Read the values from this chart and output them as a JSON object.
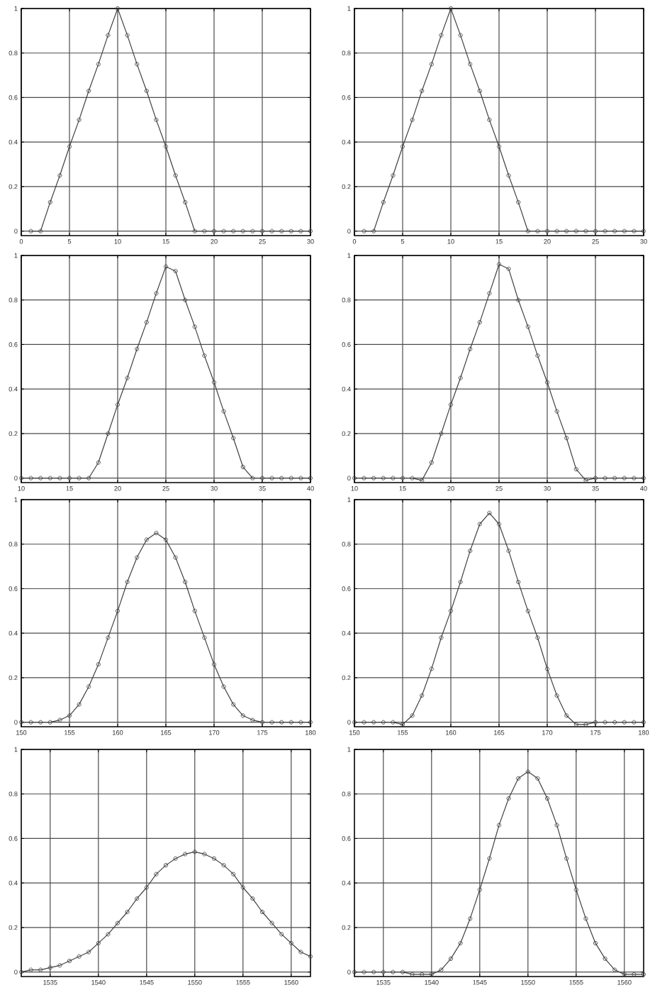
{
  "chart_data": [
    {
      "type": "line",
      "x": [
        1,
        2,
        3,
        4,
        5,
        6,
        7,
        8,
        9,
        10,
        11,
        12,
        13,
        14,
        15,
        16,
        17,
        18,
        19,
        20,
        21,
        22,
        23,
        24,
        25,
        26,
        27,
        28,
        29,
        30
      ],
      "values": [
        0,
        0,
        0.13,
        0.25,
        0.38,
        0.5,
        0.63,
        0.75,
        0.88,
        1,
        0.88,
        0.75,
        0.63,
        0.5,
        0.38,
        0.25,
        0.13,
        0,
        0,
        0,
        0,
        0,
        0,
        0,
        0,
        0,
        0,
        0,
        0,
        0
      ],
      "color": "#404040",
      "marker": "circle",
      "xlim": [
        0,
        30
      ],
      "ylim": [
        -0.02,
        1
      ],
      "xticks": [
        0,
        5,
        10,
        15,
        20,
        25,
        30
      ],
      "yticks": [
        0,
        0.2,
        0.4,
        0.6,
        0.8,
        1
      ],
      "grid": true
    },
    {
      "type": "line",
      "x": [
        1,
        2,
        3,
        4,
        5,
        6,
        7,
        8,
        9,
        10,
        11,
        12,
        13,
        14,
        15,
        16,
        17,
        18,
        19,
        20,
        21,
        22,
        23,
        24,
        25,
        26,
        27,
        28,
        29,
        30
      ],
      "values": [
        0,
        0,
        0.13,
        0.25,
        0.38,
        0.5,
        0.63,
        0.75,
        0.88,
        1,
        0.88,
        0.75,
        0.63,
        0.5,
        0.38,
        0.25,
        0.13,
        0,
        0,
        0,
        0,
        0,
        0,
        0,
        0,
        0,
        0,
        0,
        0,
        0
      ],
      "color": "#404040",
      "marker": "circle",
      "xlim": [
        0,
        30
      ],
      "ylim": [
        -0.02,
        1
      ],
      "xticks": [
        0,
        5,
        10,
        15,
        20,
        25,
        30
      ],
      "yticks": [
        0,
        0.2,
        0.4,
        0.6,
        0.8,
        1
      ],
      "grid": true
    },
    {
      "type": "line",
      "x": [
        10,
        11,
        12,
        13,
        14,
        15,
        16,
        17,
        18,
        19,
        20,
        21,
        22,
        23,
        24,
        25,
        26,
        27,
        28,
        29,
        30,
        31,
        32,
        33,
        34,
        35,
        36,
        37,
        38,
        39,
        40
      ],
      "values": [
        0,
        0,
        0,
        0,
        0,
        0,
        0,
        0,
        0.07,
        0.2,
        0.33,
        0.45,
        0.58,
        0.7,
        0.83,
        0.95,
        0.93,
        0.8,
        0.68,
        0.55,
        0.43,
        0.3,
        0.18,
        0.05,
        0,
        0,
        0,
        0,
        0,
        0,
        0
      ],
      "color": "#404040",
      "marker": "circle",
      "xlim": [
        10,
        40
      ],
      "ylim": [
        -0.02,
        1
      ],
      "xticks": [
        10,
        15,
        20,
        25,
        30,
        35,
        40
      ],
      "yticks": [
        0,
        0.2,
        0.4,
        0.6,
        0.8,
        1
      ],
      "grid": true
    },
    {
      "type": "line",
      "x": [
        10,
        11,
        12,
        13,
        14,
        15,
        16,
        17,
        18,
        19,
        20,
        21,
        22,
        23,
        24,
        25,
        26,
        27,
        28,
        29,
        30,
        31,
        32,
        33,
        34,
        35,
        36,
        37,
        38,
        39,
        40
      ],
      "values": [
        0,
        0,
        0,
        0,
        0,
        0,
        0,
        -0.01,
        0.07,
        0.2,
        0.33,
        0.45,
        0.58,
        0.7,
        0.83,
        0.96,
        0.94,
        0.8,
        0.68,
        0.55,
        0.43,
        0.3,
        0.18,
        0.04,
        -0.01,
        0,
        0,
        0,
        0,
        0,
        0
      ],
      "color": "#404040",
      "marker": "circle",
      "xlim": [
        10,
        40
      ],
      "ylim": [
        -0.02,
        1
      ],
      "xticks": [
        10,
        15,
        20,
        25,
        30,
        35,
        40
      ],
      "yticks": [
        0,
        0.2,
        0.4,
        0.6,
        0.8,
        1
      ],
      "grid": true
    },
    {
      "type": "line",
      "x": [
        150,
        151,
        152,
        153,
        154,
        155,
        156,
        157,
        158,
        159,
        160,
        161,
        162,
        163,
        164,
        165,
        166,
        167,
        168,
        169,
        170,
        171,
        172,
        173,
        174,
        175,
        176,
        177,
        178,
        179,
        180
      ],
      "values": [
        0,
        0,
        0,
        0,
        0.01,
        0.03,
        0.08,
        0.16,
        0.26,
        0.38,
        0.5,
        0.63,
        0.74,
        0.82,
        0.85,
        0.82,
        0.74,
        0.63,
        0.5,
        0.38,
        0.26,
        0.16,
        0.08,
        0.03,
        0.01,
        0,
        0,
        0,
        0,
        0,
        0
      ],
      "color": "#404040",
      "marker": "circle",
      "xlim": [
        150,
        180
      ],
      "ylim": [
        -0.02,
        1
      ],
      "xticks": [
        150,
        155,
        160,
        165,
        170,
        175,
        180
      ],
      "yticks": [
        0,
        0.2,
        0.4,
        0.6,
        0.8,
        1
      ],
      "grid": true
    },
    {
      "type": "line",
      "x": [
        150,
        151,
        152,
        153,
        154,
        155,
        156,
        157,
        158,
        159,
        160,
        161,
        162,
        163,
        164,
        165,
        166,
        167,
        168,
        169,
        170,
        171,
        172,
        173,
        174,
        175,
        176,
        177,
        178,
        179,
        180
      ],
      "values": [
        0,
        0,
        0,
        0,
        0,
        -0.01,
        0.03,
        0.12,
        0.24,
        0.38,
        0.5,
        0.63,
        0.77,
        0.89,
        0.94,
        0.89,
        0.77,
        0.63,
        0.5,
        0.38,
        0.24,
        0.12,
        0.03,
        -0.01,
        -0.01,
        0,
        0,
        0,
        0,
        0,
        0
      ],
      "color": "#404040",
      "marker": "circle",
      "xlim": [
        150,
        180
      ],
      "ylim": [
        -0.02,
        1
      ],
      "xticks": [
        150,
        155,
        160,
        165,
        170,
        175,
        180
      ],
      "yticks": [
        0,
        0.2,
        0.4,
        0.6,
        0.8,
        1
      ],
      "grid": true
    },
    {
      "type": "line",
      "x": [
        1532,
        1533,
        1534,
        1535,
        1536,
        1537,
        1538,
        1539,
        1540,
        1541,
        1542,
        1543,
        1544,
        1545,
        1546,
        1547,
        1548,
        1549,
        1550,
        1551,
        1552,
        1553,
        1554,
        1555,
        1556,
        1557,
        1558,
        1559,
        1560,
        1561,
        1562
      ],
      "values": [
        0,
        0.01,
        0.01,
        0.02,
        0.03,
        0.05,
        0.07,
        0.09,
        0.13,
        0.17,
        0.22,
        0.27,
        0.33,
        0.38,
        0.44,
        0.48,
        0.51,
        0.53,
        0.54,
        0.53,
        0.51,
        0.48,
        0.44,
        0.38,
        0.33,
        0.27,
        0.22,
        0.17,
        0.13,
        0.09,
        0.07
      ],
      "color": "#404040",
      "marker": "circle",
      "xlim": [
        1532,
        1562
      ],
      "ylim": [
        -0.02,
        1
      ],
      "xticks": [
        1535,
        1540,
        1545,
        1550,
        1555,
        1560
      ],
      "yticks": [
        0,
        0.2,
        0.4,
        0.6,
        0.8,
        1
      ],
      "grid": true
    },
    {
      "type": "line",
      "x": [
        1532,
        1533,
        1534,
        1535,
        1536,
        1537,
        1538,
        1539,
        1540,
        1541,
        1542,
        1543,
        1544,
        1545,
        1546,
        1547,
        1548,
        1549,
        1550,
        1551,
        1552,
        1553,
        1554,
        1555,
        1556,
        1557,
        1558,
        1559,
        1560,
        1561,
        1562
      ],
      "values": [
        0,
        0,
        0,
        0,
        0,
        0,
        -0.01,
        -0.01,
        -0.01,
        0.01,
        0.06,
        0.13,
        0.24,
        0.37,
        0.51,
        0.66,
        0.78,
        0.87,
        0.9,
        0.87,
        0.78,
        0.66,
        0.51,
        0.37,
        0.24,
        0.13,
        0.06,
        0.01,
        -0.01,
        -0.01,
        -0.01
      ],
      "color": "#404040",
      "marker": "circle",
      "xlim": [
        1532,
        1562
      ],
      "ylim": [
        -0.02,
        1
      ],
      "xticks": [
        1535,
        1540,
        1545,
        1550,
        1555,
        1560
      ],
      "yticks": [
        0,
        0.2,
        0.4,
        0.6,
        0.8,
        1
      ],
      "grid": true
    }
  ]
}
